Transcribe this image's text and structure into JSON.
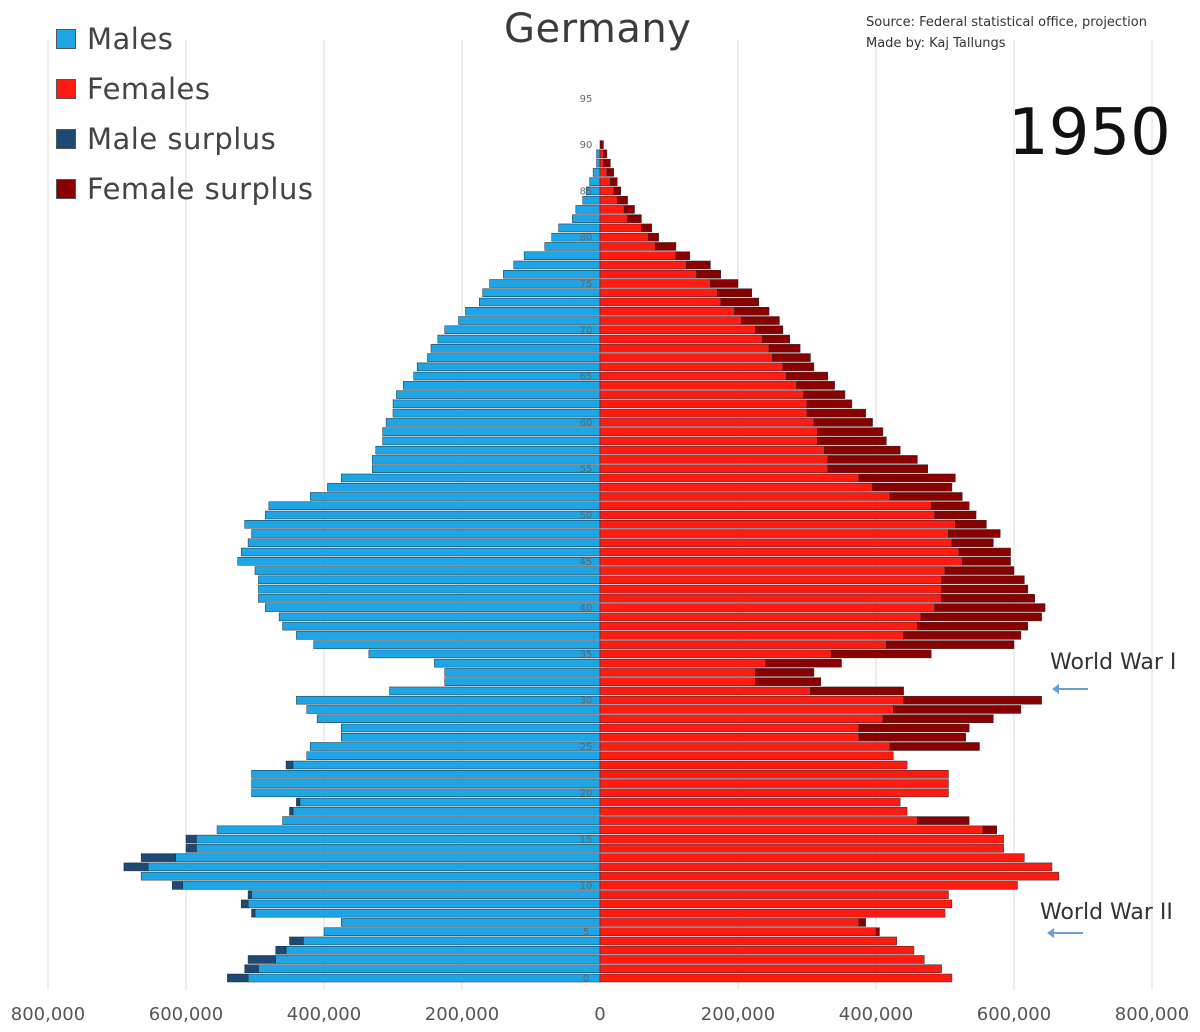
{
  "title": "Germany",
  "year": "1950",
  "source": {
    "line1": "Source: Federal statistical office, projection",
    "line2": "Made by: Kaj Tallungs"
  },
  "legend": [
    {
      "label": "Males",
      "color": "#1ea5e6"
    },
    {
      "label": "Females",
      "color": "#ff1a12"
    },
    {
      "label": "Male surplus",
      "color": "#1c4a75"
    },
    {
      "label": "Female surplus",
      "color": "#8a0000"
    }
  ],
  "annotations": {
    "ww1": "World War I",
    "ww2": "World War II"
  },
  "colors": {
    "male": "#1ea5e6",
    "female": "#ff1a12",
    "male_surplus": "#1c4a75",
    "female_surplus": "#8a0000",
    "grid": "#dcdcdc"
  },
  "chart_data": {
    "type": "bar",
    "orientation": "horizontal",
    "title": "Germany",
    "xlabel": "",
    "ylabel": "",
    "xlim": [
      -800000,
      800000
    ],
    "x_tick_labels": [
      "800,000",
      "600,000",
      "400,000",
      "200,000",
      "0",
      "200,000",
      "400,000",
      "600,000",
      "800,000"
    ],
    "x_tick_values": [
      -800000,
      -600000,
      -400000,
      -200000,
      0,
      200000,
      400000,
      600000,
      800000
    ],
    "age_tick_labels": [
      "0",
      "5",
      "10",
      "15",
      "20",
      "25",
      "30",
      "35",
      "40",
      "45",
      "50",
      "55",
      "60",
      "65",
      "70",
      "75",
      "80",
      "85",
      "90",
      "95"
    ],
    "ages": [
      0,
      1,
      2,
      3,
      4,
      5,
      6,
      7,
      8,
      9,
      10,
      11,
      12,
      13,
      14,
      15,
      16,
      17,
      18,
      19,
      20,
      21,
      22,
      23,
      24,
      25,
      26,
      27,
      28,
      29,
      30,
      31,
      32,
      33,
      34,
      35,
      36,
      37,
      38,
      39,
      40,
      41,
      42,
      43,
      44,
      45,
      46,
      47,
      48,
      49,
      50,
      51,
      52,
      53,
      54,
      55,
      56,
      57,
      58,
      59,
      60,
      61,
      62,
      63,
      64,
      65,
      66,
      67,
      68,
      69,
      70,
      71,
      72,
      73,
      74,
      75,
      76,
      77,
      78,
      79,
      80,
      81,
      82,
      83,
      84,
      85,
      86,
      87,
      88,
      89,
      90
    ],
    "series": [
      {
        "name": "Males",
        "values": [
          540000,
          515000,
          510000,
          470000,
          450000,
          400000,
          375000,
          505000,
          520000,
          510000,
          620000,
          665000,
          690000,
          665000,
          600000,
          600000,
          555000,
          460000,
          450000,
          440000,
          505000,
          505000,
          505000,
          455000,
          425000,
          420000,
          375000,
          375000,
          410000,
          425000,
          440000,
          305000,
          225000,
          225000,
          240000,
          335000,
          415000,
          440000,
          460000,
          465000,
          485000,
          495000,
          495000,
          495000,
          500000,
          525000,
          520000,
          510000,
          505000,
          515000,
          485000,
          480000,
          420000,
          395000,
          375000,
          330000,
          330000,
          325000,
          315000,
          315000,
          310000,
          300000,
          300000,
          295000,
          285000,
          270000,
          265000,
          250000,
          245000,
          235000,
          225000,
          205000,
          195000,
          175000,
          170000,
          160000,
          140000,
          125000,
          110000,
          80000,
          70000,
          60000,
          40000,
          35000,
          25000,
          20000,
          15000,
          10000,
          5000,
          5000,
          0
        ]
      },
      {
        "name": "Females",
        "values": [
          510000,
          495000,
          470000,
          455000,
          430000,
          405000,
          385000,
          500000,
          510000,
          505000,
          605000,
          665000,
          655000,
          615000,
          585000,
          585000,
          575000,
          535000,
          445000,
          435000,
          505000,
          505000,
          505000,
          445000,
          425000,
          550000,
          530000,
          535000,
          570000,
          610000,
          640000,
          440000,
          320000,
          310000,
          350000,
          480000,
          600000,
          610000,
          620000,
          640000,
          645000,
          630000,
          620000,
          615000,
          600000,
          595000,
          595000,
          570000,
          580000,
          560000,
          545000,
          535000,
          525000,
          510000,
          515000,
          475000,
          460000,
          435000,
          415000,
          410000,
          395000,
          385000,
          365000,
          355000,
          340000,
          330000,
          310000,
          305000,
          290000,
          275000,
          265000,
          260000,
          245000,
          230000,
          220000,
          200000,
          175000,
          160000,
          130000,
          110000,
          85000,
          75000,
          60000,
          50000,
          40000,
          30000,
          25000,
          20000,
          15000,
          10000,
          5000
        ]
      }
    ],
    "annotations": [
      {
        "text": "World War I",
        "age_range": [
          31,
          34
        ]
      },
      {
        "text": "World War II",
        "age_range": [
          4,
          6
        ]
      }
    ]
  }
}
